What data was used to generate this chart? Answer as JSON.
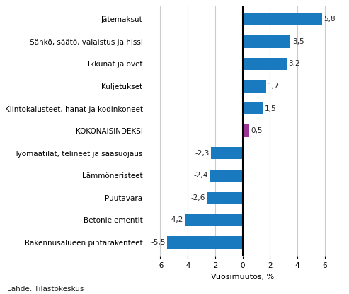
{
  "categories": [
    "Jätemaksut",
    "Sähkö, säätö, valaistus ja hissi",
    "Ikkunat ja ovet",
    "Kuljetukset",
    "Kiintokalusteet, hanat ja kodinkoneet",
    "KOKONAISINDEKSI",
    "Työmaatilat, telineet ja sääsuojaus",
    "Lämmöneristeet",
    "Puutavara",
    "Betonielementit",
    "Rakennusalueen pintarakenteet"
  ],
  "values": [
    5.8,
    3.5,
    3.2,
    1.7,
    1.5,
    0.5,
    -2.3,
    -2.4,
    -2.6,
    -4.2,
    -5.5
  ],
  "bar_colors": [
    "#1a7abf",
    "#1a7abf",
    "#1a7abf",
    "#1a7abf",
    "#1a7abf",
    "#9b3593",
    "#1a7abf",
    "#1a7abf",
    "#1a7abf",
    "#1a7abf",
    "#1a7abf"
  ],
  "xlabel": "Vuosimuutos, %",
  "xlim": [
    -7,
    7
  ],
  "xticks": [
    -6,
    -4,
    -2,
    0,
    2,
    4,
    6
  ],
  "value_label_color": "#222222",
  "grid_color": "#cccccc",
  "source_text": "Lähde: Tilastokeskus",
  "bar_height": 0.55,
  "label_fontsize": 7.5,
  "tick_fontsize": 7.5,
  "xlabel_fontsize": 8
}
